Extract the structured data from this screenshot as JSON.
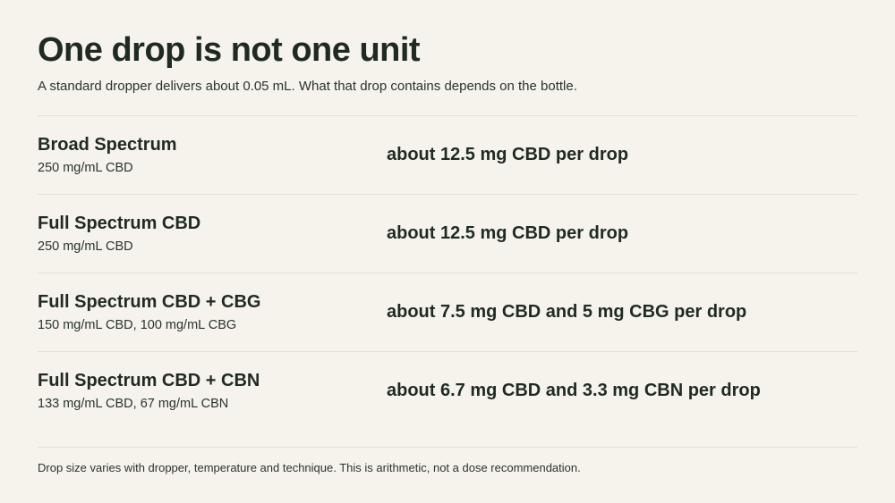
{
  "header": {
    "title": "One drop is not one unit",
    "subtitle": "A standard dropper delivers about 0.05 mL. What that drop contains depends on the bottle."
  },
  "products": [
    {
      "name": "Broad Spectrum",
      "concentration": "250 mg/mL CBD",
      "per_drop": "about 12.5 mg CBD per drop"
    },
    {
      "name": "Full Spectrum CBD",
      "concentration": "250 mg/mL CBD",
      "per_drop": "about 12.5 mg CBD per drop"
    },
    {
      "name": "Full Spectrum CBD + CBG",
      "concentration": "150 mg/mL CBD, 100 mg/mL CBG",
      "per_drop": "about 7.5 mg CBD and 5 mg CBG per drop"
    },
    {
      "name": "Full Spectrum CBD + CBN",
      "concentration": "133 mg/mL CBD, 67 mg/mL CBN",
      "per_drop": "about 6.7 mg CBD and 3.3 mg CBN per drop"
    }
  ],
  "footer": {
    "note": "Drop size varies with dropper, temperature and technique. This is arithmetic, not a dose recommendation."
  }
}
